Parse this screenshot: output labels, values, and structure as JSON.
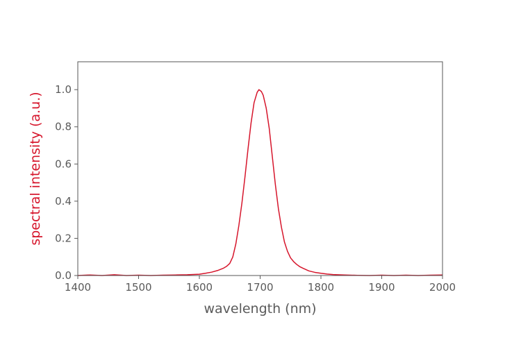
{
  "chart_data": {
    "type": "line",
    "title": "",
    "xlabel": "wavelength (nm)",
    "ylabel": "spectral intensity (a.u.)",
    "xlim": [
      1400,
      2000
    ],
    "ylim": [
      0,
      1.15
    ],
    "x_ticks": [
      "1400",
      "1500",
      "1600",
      "1700",
      "1800",
      "1900",
      "2000"
    ],
    "y_ticks": [
      "0.0",
      "0.2",
      "0.4",
      "0.6",
      "0.8",
      "1.0"
    ],
    "grid": false,
    "legend": "none",
    "colors": {
      "line": "#d6152b",
      "ylabel": "#d6152b",
      "axis": "#5a5a5a",
      "frame": "#555555"
    },
    "series": [
      {
        "x": [
          1400,
          1420,
          1440,
          1460,
          1480,
          1500,
          1520,
          1540,
          1560,
          1580,
          1600,
          1610,
          1620,
          1630,
          1640,
          1645,
          1650,
          1655,
          1660,
          1665,
          1670,
          1675,
          1680,
          1685,
          1690,
          1695,
          1698,
          1700,
          1702,
          1705,
          1710,
          1715,
          1720,
          1725,
          1730,
          1735,
          1740,
          1745,
          1750,
          1755,
          1760,
          1765,
          1770,
          1780,
          1790,
          1800,
          1810,
          1820,
          1840,
          1860,
          1880,
          1900,
          1920,
          1940,
          1960,
          1980,
          2000
        ],
        "y": [
          0.0,
          0.003,
          0.0,
          0.004,
          0.0,
          0.002,
          0.0,
          0.002,
          0.003,
          0.004,
          0.007,
          0.012,
          0.018,
          0.027,
          0.04,
          0.05,
          0.065,
          0.1,
          0.17,
          0.27,
          0.39,
          0.53,
          0.68,
          0.82,
          0.93,
          0.985,
          1.0,
          0.995,
          0.99,
          0.97,
          0.9,
          0.79,
          0.64,
          0.49,
          0.36,
          0.26,
          0.18,
          0.13,
          0.095,
          0.075,
          0.06,
          0.048,
          0.04,
          0.025,
          0.017,
          0.012,
          0.008,
          0.005,
          0.003,
          0.001,
          0.0,
          0.002,
          0.0,
          0.002,
          0.0,
          0.002,
          0.003
        ]
      }
    ]
  }
}
